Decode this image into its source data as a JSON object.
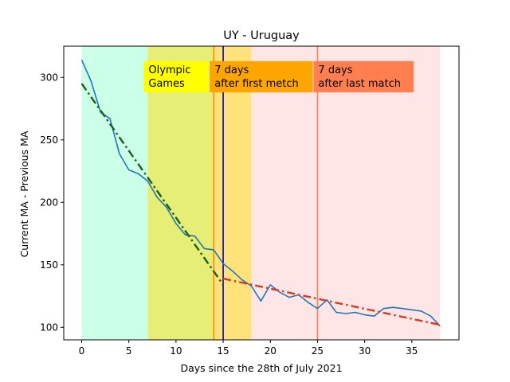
{
  "chart_data": {
    "type": "line",
    "title": "UY - Uruguay",
    "xlabel": "Days since the 28th of July 2021",
    "ylabel": "Current MA - Previous MA",
    "xlim": [
      -1.9,
      40.0
    ],
    "ylim": [
      90,
      325
    ],
    "xticks": [
      0,
      5,
      10,
      15,
      20,
      25,
      30,
      35
    ],
    "yticks": [
      100,
      150,
      200,
      250,
      300
    ],
    "grid": false,
    "regions": [
      {
        "x0": 0,
        "x1": 7,
        "color": "#ccffe8"
      },
      {
        "x0": 7,
        "x1": 13.9,
        "color": "#e6ee76"
      },
      {
        "x0": 13.9,
        "x1": 18,
        "color": "#ffe27a"
      },
      {
        "x0": 18,
        "x1": 38,
        "color": "#ffe6e6"
      }
    ],
    "vlines": [
      {
        "x": 14,
        "color": "#ff8c00"
      },
      {
        "x": 15,
        "color": "#0000cc"
      },
      {
        "x": 25,
        "color": "#ff7f50"
      }
    ],
    "annotations": [
      {
        "lines": [
          "Olympic",
          "Games"
        ],
        "x": 7,
        "y_top": 313,
        "y_bottom": 288,
        "width": 6.4,
        "bg": "#ffff00"
      },
      {
        "lines": [
          "7 days",
          "after first metch"
        ],
        "x": 14,
        "y_top": 313,
        "y_bottom": 288,
        "width": 10.5,
        "bg": "#ffa500"
      },
      {
        "lines": [
          "7 days",
          "after last match"
        ],
        "x": 25,
        "y_top": 313,
        "y_bottom": 288,
        "width": 10.2,
        "bg": "#ff7f50"
      }
    ],
    "series": [
      {
        "style": "solid",
        "color": "#1f77b4",
        "x": [
          0,
          1,
          2,
          3,
          4,
          5,
          6,
          7,
          8,
          9,
          10,
          11,
          12,
          13,
          14,
          15,
          16,
          17,
          18,
          19,
          20,
          21,
          22,
          23,
          24,
          25,
          26,
          27,
          28,
          29,
          30,
          31,
          32,
          33,
          34,
          35,
          36,
          37,
          38
        ],
        "values": [
          314,
          297,
          272,
          267,
          239,
          226,
          223,
          217,
          204,
          196,
          183,
          174,
          173,
          163,
          162,
          151,
          145,
          138,
          133,
          121,
          134,
          128,
          124,
          126,
          120,
          115,
          122,
          112,
          111,
          112,
          110,
          109,
          115,
          116,
          115,
          114,
          113,
          109,
          101
        ]
      },
      {
        "style": "dashdot",
        "color": "#1a5e1a",
        "x": [
          0,
          15
        ],
        "values": [
          295,
          134
        ]
      },
      {
        "style": "dashdot",
        "color": "#d63a25",
        "x": [
          15,
          38
        ],
        "values": [
          139,
          102
        ]
      }
    ]
  }
}
